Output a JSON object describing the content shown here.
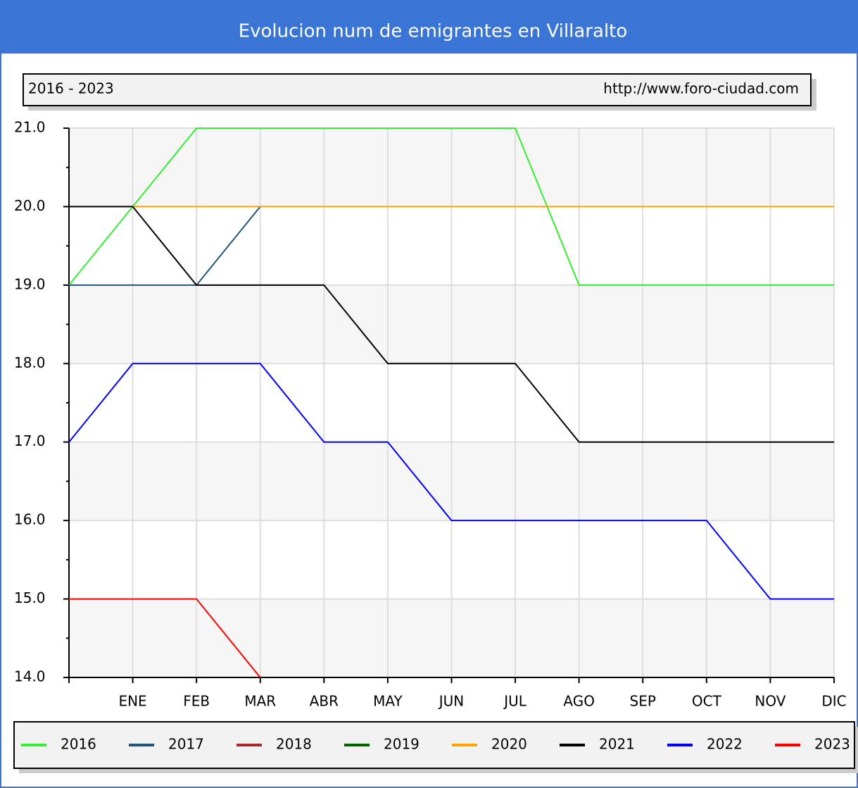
{
  "chart_data": {
    "type": "line",
    "title": "Evolucion num de emigrantes en Villaralto",
    "subtitle": "2016 - 2023",
    "source": "http://www.foro-ciudad.com",
    "categories": [
      null,
      "ENE",
      "FEB",
      "MAR",
      "ABR",
      "MAY",
      "JUN",
      "JUL",
      "AGO",
      "SEP",
      "OCT",
      "NOV",
      "DIC"
    ],
    "series": [
      {
        "name": "2016",
        "color": "#33ee33",
        "values": [
          19,
          20,
          21,
          21,
          21,
          21,
          21,
          21,
          19,
          19,
          19,
          19,
          19
        ]
      },
      {
        "name": "2017",
        "color": "#225577",
        "values": [
          19,
          19,
          19,
          20,
          null,
          null,
          null,
          null,
          null,
          null,
          null,
          null,
          null
        ]
      },
      {
        "name": "2018",
        "color": "#a52a2a",
        "values": [
          null,
          null,
          null,
          null,
          null,
          null,
          null,
          null,
          null,
          null,
          null,
          null,
          null
        ]
      },
      {
        "name": "2019",
        "color": "#006400",
        "values": [
          null,
          null,
          null,
          null,
          null,
          null,
          null,
          null,
          null,
          null,
          null,
          null,
          null
        ]
      },
      {
        "name": "2020",
        "color": "#ffa500",
        "values": [
          null,
          20,
          20,
          20,
          20,
          20,
          20,
          20,
          20,
          20,
          20,
          20,
          20
        ]
      },
      {
        "name": "2021",
        "color": "#000000",
        "values": [
          20,
          20,
          19,
          19,
          19,
          18,
          18,
          18,
          17,
          17,
          17,
          17,
          17
        ]
      },
      {
        "name": "2022",
        "color": "#0000ff",
        "values": [
          17,
          18,
          18,
          18,
          17,
          17,
          16,
          16,
          16,
          16,
          16,
          15,
          15
        ]
      },
      {
        "name": "2023",
        "color": "#ff0000",
        "values": [
          15,
          15,
          15,
          14,
          null,
          null,
          null,
          null,
          null,
          null,
          null,
          null,
          null
        ]
      }
    ],
    "ylim": [
      14,
      21
    ],
    "yticks": [
      {
        "value": 14,
        "label": "14.0"
      },
      {
        "value": 15,
        "label": "15.0"
      },
      {
        "value": 16,
        "label": "16.0"
      },
      {
        "value": 17,
        "label": "17.0"
      },
      {
        "value": 18,
        "label": "18.0"
      },
      {
        "value": 19,
        "label": "19.0"
      },
      {
        "value": 20,
        "label": "20.0"
      },
      {
        "value": 21,
        "label": "21.0"
      }
    ],
    "grid": true
  }
}
